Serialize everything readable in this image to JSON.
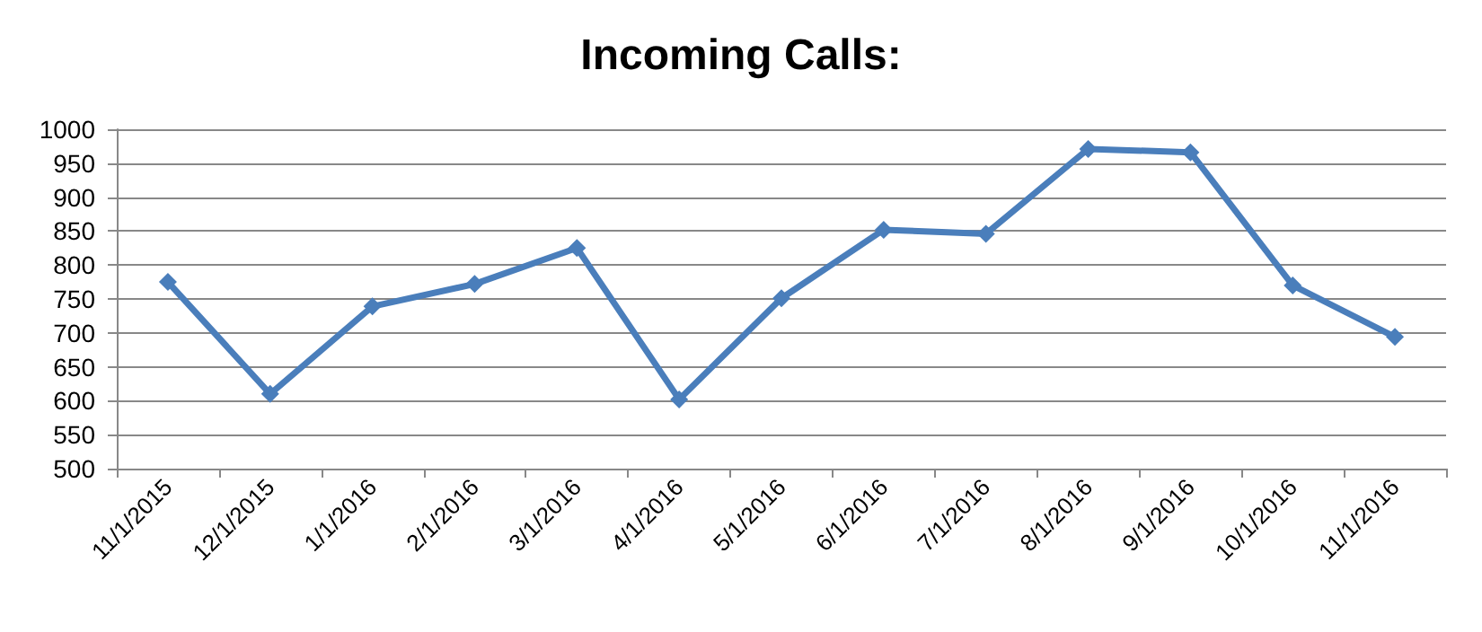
{
  "chart_data": {
    "type": "line",
    "title": "Incoming Calls:",
    "categories": [
      "11/1/2015",
      "12/1/2015",
      "1/1/2016",
      "2/1/2016",
      "3/1/2016",
      "4/1/2016",
      "5/1/2016",
      "6/1/2016",
      "7/1/2016",
      "8/1/2016",
      "9/1/2016",
      "10/1/2016",
      "11/1/2016"
    ],
    "series": [
      {
        "color": "#4a7ebb",
        "values": [
          775,
          610,
          739,
          772,
          825,
          602,
          751,
          852,
          846,
          971,
          966,
          770,
          694
        ]
      }
    ],
    "ylim": [
      500,
      1000
    ],
    "yticks": [
      500,
      550,
      600,
      650,
      700,
      750,
      800,
      850,
      900,
      950,
      1000
    ],
    "grid": "y",
    "marker": "diamond",
    "line_style": "solid"
  }
}
